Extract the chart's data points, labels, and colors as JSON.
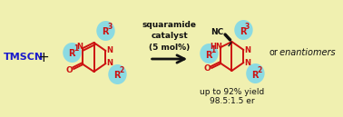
{
  "bg_color": "#f0f0b0",
  "tmscn_color": "#1a1acc",
  "red_color": "#cc1111",
  "cyan_color": "#80d8e8",
  "black_color": "#111111",
  "squaramide_text": [
    "squaramide",
    "catalyst",
    "(5 mol%)"
  ],
  "yield_text": [
    "up to 92% yield",
    "98.5:1.5 er"
  ],
  "figsize": [
    3.78,
    1.29
  ],
  "dpi": 100,
  "xlim": [
    0,
    378
  ],
  "ylim": [
    0,
    129
  ]
}
